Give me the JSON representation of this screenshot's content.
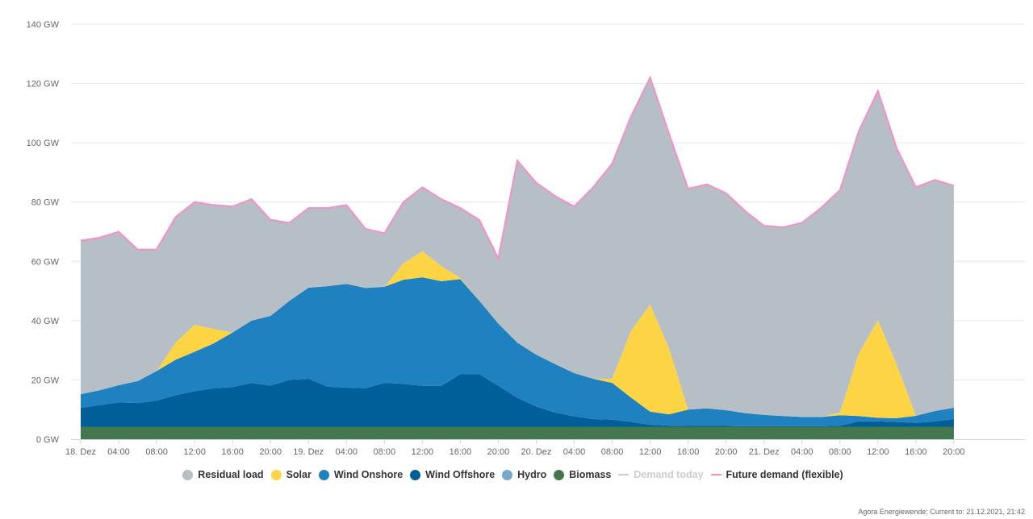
{
  "chart_data": {
    "type": "area",
    "stacked": true,
    "title": "",
    "xlabel": "",
    "ylabel": "",
    "y_unit": "GW",
    "ylim": [
      0,
      140
    ],
    "y_ticks": [
      "0 GW",
      "20 GW",
      "40 GW",
      "60 GW",
      "80 GW",
      "100 GW",
      "120 GW",
      "140 GW"
    ],
    "y_tick_values": [
      0,
      20,
      40,
      60,
      80,
      100,
      120,
      140
    ],
    "grid": true,
    "legend_position": "bottom",
    "x_start": "2021-12-18 00:00",
    "x_step_hours": 2,
    "x_tick_labels": [
      "18. Dez",
      "04:00",
      "08:00",
      "12:00",
      "16:00",
      "20:00",
      "19. Dez",
      "04:00",
      "08:00",
      "12:00",
      "16:00",
      "20:00",
      "20. Dez",
      "04:00",
      "08:00",
      "12:00",
      "16:00",
      "20:00",
      "21. Dez",
      "04:00",
      "08:00",
      "12:00",
      "16:00",
      "20:00"
    ],
    "x_hours": [
      0,
      2,
      4,
      6,
      8,
      10,
      12,
      14,
      16,
      18,
      20,
      22,
      24,
      26,
      28,
      30,
      32,
      34,
      36,
      38,
      40,
      42,
      44,
      46,
      48,
      50,
      52,
      54,
      56,
      58,
      60,
      62,
      64,
      66,
      68,
      70,
      72,
      74,
      76,
      78,
      80,
      82,
      84,
      86,
      88,
      90,
      92
    ],
    "series": [
      {
        "name": "Biomass",
        "color": "#44774d",
        "values": [
          4.2,
          4.2,
          4.2,
          4.2,
          4.2,
          4.2,
          4.2,
          4.2,
          4.2,
          4.2,
          4.2,
          4.2,
          4.2,
          4.2,
          4.2,
          4.2,
          4.2,
          4.2,
          4.2,
          4.2,
          4.2,
          4.2,
          4.2,
          4.2,
          4.2,
          4.2,
          4.2,
          4.2,
          4.2,
          4.2,
          4.2,
          4.2,
          4.2,
          4.2,
          4.2,
          4.2,
          4.2,
          4.2,
          4.2,
          4.2,
          4.2,
          4.2,
          4.2,
          4.2,
          4.2,
          4.2,
          4.2
        ]
      },
      {
        "name": "Hydro",
        "color": "#77a8cc",
        "values": [
          0,
          0,
          0,
          0,
          0,
          0,
          0,
          0,
          0,
          0,
          0,
          0,
          0,
          0,
          0,
          0,
          0,
          0,
          0,
          0,
          0,
          0,
          0,
          0,
          0,
          0,
          0,
          0,
          0,
          0,
          0,
          0,
          0,
          0,
          0,
          0,
          0,
          0,
          0,
          0,
          0,
          0,
          0,
          0,
          0,
          0,
          0
        ]
      },
      {
        "name": "Wind Offshore",
        "color": "#005e99",
        "values": [
          6.4,
          7.3,
          8.2,
          8.0,
          8.8,
          10.6,
          12.0,
          13.0,
          13.4,
          14.8,
          13.9,
          15.8,
          16.2,
          13.5,
          13.2,
          13.0,
          14.8,
          14.5,
          13.8,
          13.8,
          17.8,
          17.8,
          13.8,
          9.8,
          6.8,
          4.8,
          3.5,
          2.6,
          2.4,
          1.6,
          0.7,
          0.4,
          0.3,
          0.3,
          0.3,
          0.2,
          0.2,
          0.2,
          0.2,
          0.2,
          0.4,
          1.8,
          1.8,
          1.6,
          1.3,
          1.8,
          2.6
        ]
      },
      {
        "name": "Wind Onshore",
        "color": "#2081c0",
        "values": [
          4.6,
          5.0,
          5.8,
          7.4,
          10.0,
          12.0,
          13.3,
          15.1,
          18.4,
          21.0,
          23.5,
          26.7,
          30.7,
          33.9,
          35.0,
          33.8,
          32.4,
          35.1,
          36.6,
          35.3,
          32.0,
          24.7,
          21.0,
          18.6,
          17.5,
          16.3,
          14.6,
          13.6,
          12.4,
          8.2,
          4.4,
          3.8,
          5.5,
          5.9,
          5.3,
          4.4,
          3.8,
          3.4,
          3.1,
          3.1,
          3.5,
          1.8,
          1.2,
          1.3,
          2.4,
          3.5,
          3.8
        ]
      },
      {
        "name": "Solar",
        "color": "#fdd443",
        "values": [
          0,
          0,
          0,
          0,
          0,
          5.8,
          9.1,
          4.9,
          0,
          0,
          0,
          0,
          0,
          0,
          0,
          0,
          0,
          5.5,
          8.8,
          5.1,
          0.4,
          0,
          0,
          0,
          0,
          0,
          0,
          0,
          1.4,
          22.7,
          36.1,
          22.1,
          0,
          0,
          0,
          0,
          0,
          0,
          0,
          0,
          0.9,
          21.2,
          33.0,
          17.9,
          0,
          0,
          0
        ]
      },
      {
        "name": "Residual load",
        "color": "#b7bfc6",
        "values": [
          51.8,
          51.5,
          51.8,
          44.4,
          41.0,
          42.4,
          41.4,
          41.8,
          42.5,
          41.0,
          32.4,
          26.3,
          26.9,
          26.4,
          26.6,
          20.0,
          18.1,
          20.7,
          21.6,
          22.6,
          23.6,
          27.3,
          22.0,
          61.4,
          58.0,
          56.7,
          56.2,
          64.6,
          72.6,
          72.3,
          76.6,
          72.5,
          74.5,
          75.6,
          73.2,
          68.2,
          63.8,
          63.7,
          65.5,
          70.5,
          75.0,
          75.0,
          77.3,
          73.0,
          77.1,
          78.0,
          74.9
        ]
      }
    ],
    "lines": [
      {
        "name": "Future demand (flexible)",
        "color": "#f48fc8",
        "values": [
          67,
          68,
          70,
          64,
          64,
          75,
          80,
          79,
          78.5,
          81,
          74,
          73,
          78,
          78,
          79,
          71,
          69.5,
          80,
          85,
          81,
          78,
          74,
          61,
          94,
          86.5,
          82,
          78.5,
          85,
          93,
          109,
          122,
          103,
          84.5,
          86,
          83,
          77,
          72,
          71.5,
          73,
          78,
          84,
          104,
          117.5,
          98,
          85,
          87.5,
          85.5
        ]
      },
      {
        "name": "Demand today",
        "color": "#cccccc",
        "hidden": true
      }
    ]
  },
  "legend": [
    {
      "label": "Residual load",
      "color": "#b7bfc6",
      "symbol": "dot"
    },
    {
      "label": "Solar",
      "color": "#fdd443",
      "symbol": "dot"
    },
    {
      "label": "Wind Onshore",
      "color": "#2081c0",
      "symbol": "dot"
    },
    {
      "label": "Wind Offshore",
      "color": "#005e99",
      "symbol": "dot"
    },
    {
      "label": "Hydro",
      "color": "#77a8cc",
      "symbol": "dot"
    },
    {
      "label": "Biomass",
      "color": "#44774d",
      "symbol": "dot"
    },
    {
      "label": "Demand today",
      "color": "#cccccc",
      "symbol": "line",
      "disabled": true
    },
    {
      "label": "Future demand (flexible)",
      "color": "#f48fc8",
      "symbol": "line"
    }
  ],
  "footer": "Agora Energiewende; Current to: 21.12.2021, 21:42"
}
